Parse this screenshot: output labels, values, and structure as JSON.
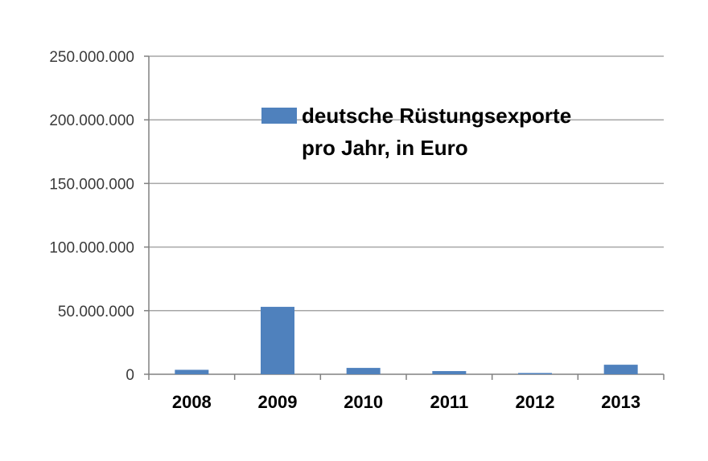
{
  "chart_data": {
    "type": "bar",
    "title": "",
    "xlabel": "",
    "ylabel": "",
    "categories": [
      "2008",
      "2009",
      "2010",
      "2011",
      "2012",
      "2013"
    ],
    "series": [
      {
        "name_lines": [
          "deutsche Rüstungsexporte",
          "pro Jahr, in Euro"
        ],
        "values": [
          3500000,
          53000000,
          5000000,
          2500000,
          1000000,
          7500000
        ],
        "color": "#4f81bd"
      }
    ],
    "ylim": [
      0,
      250000000
    ],
    "yticks": [
      0,
      50000000,
      100000000,
      150000000,
      200000000,
      250000000
    ],
    "ytick_labels": [
      "0",
      "50.000.000",
      "100.000.000",
      "150.000.000",
      "200.000.000",
      "250.000.000"
    ],
    "grid": true,
    "legend_position": "top-center",
    "colors": {
      "grid": "#a6a6a6",
      "axis": "#808080",
      "bar": "#4f81bd"
    }
  }
}
